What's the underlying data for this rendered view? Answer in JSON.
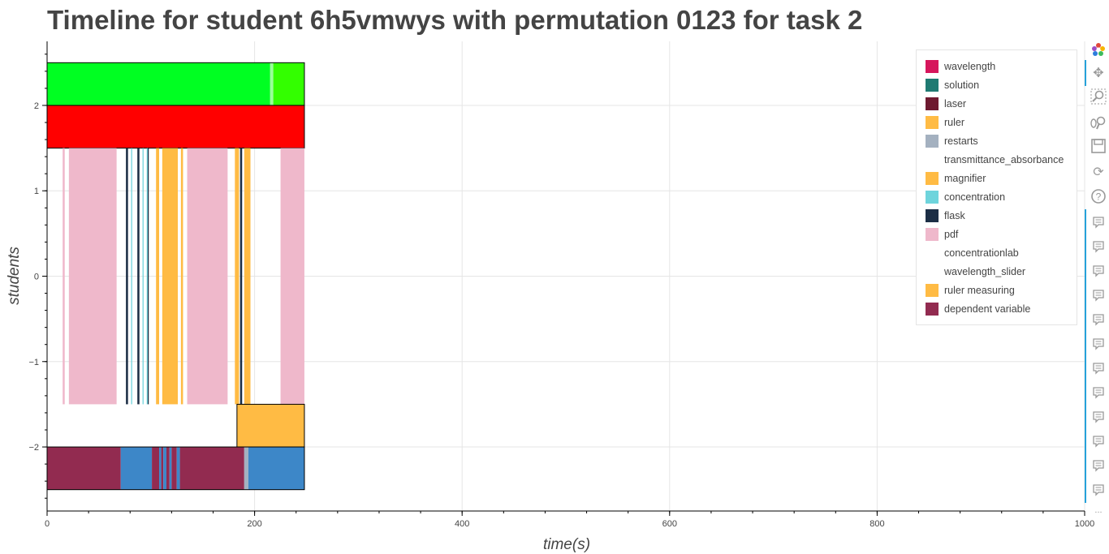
{
  "title": "Timeline for student 6h5vmwys with permutation 0123 for task 2",
  "toolbar": {
    "tools": [
      "bokeh-logo-icon",
      "pan-icon",
      "box-zoom-icon",
      "wheel-zoom-icon",
      "save-icon",
      "reset-icon",
      "help-icon"
    ],
    "hover_tool_count": 12,
    "more_label": "..."
  },
  "chart_data": {
    "type": "timeline",
    "title": "Timeline for student 6h5vmwys with permutation 0123 for task 2",
    "xlabel": "time(s)",
    "ylabel": "students",
    "xlim": [
      0,
      1000
    ],
    "ylim": [
      -2.75,
      2.75
    ],
    "xticks": [
      0,
      200,
      400,
      600,
      800,
      1000
    ],
    "yticks": [
      -2,
      -1,
      0,
      1,
      2
    ],
    "xtick_labels": [
      "0",
      "200",
      "400",
      "600",
      "800",
      "1000"
    ],
    "ytick_labels": [
      "−2",
      "−1",
      "0",
      "1",
      "2"
    ],
    "grid": true,
    "legend_position": "top-right",
    "legend": [
      {
        "label": "wavelength",
        "color": "#d6165c"
      },
      {
        "label": "solution",
        "color": "#1f7a72"
      },
      {
        "label": "laser",
        "color": "#6e1a30"
      },
      {
        "label": "ruler",
        "color": "#ffbb44"
      },
      {
        "label": "restarts",
        "color": "#a4b1c0"
      },
      {
        "label": "transmittance_absorbance",
        "color": "#ffffff"
      },
      {
        "label": "magnifier",
        "color": "#ffbb44"
      },
      {
        "label": "concentration",
        "color": "#6ed4dc"
      },
      {
        "label": "flask",
        "color": "#1c2e45"
      },
      {
        "label": "pdf",
        "color": "#efb8cb"
      },
      {
        "label": "concentrationlab",
        "color": "#ffffff"
      },
      {
        "label": "wavelength_slider",
        "color": "#ffffff"
      },
      {
        "label": "ruler measuring",
        "color": "#ffbb44"
      },
      {
        "label": "dependent variable",
        "color": "#922b50"
      }
    ],
    "rows": [
      {
        "y0": 2.0,
        "y1": 2.5,
        "outlined": true,
        "segments": [
          {
            "x0": 0,
            "x1": 215,
            "color": "#00ff22"
          },
          {
            "x0": 215,
            "x1": 218,
            "color": "#99ff99"
          },
          {
            "x0": 218,
            "x1": 248,
            "color": "#33ff00"
          }
        ]
      },
      {
        "y0": 1.5,
        "y1": 2.0,
        "outlined": true,
        "segments": [
          {
            "x0": 0,
            "x1": 248,
            "color": "#ff0000"
          }
        ]
      },
      {
        "y0": -1.5,
        "y1": 1.5,
        "outlined": false,
        "segments": [
          {
            "x0": 15,
            "x1": 17,
            "color": "#efb8cb"
          },
          {
            "x0": 21,
            "x1": 67,
            "color": "#efb8cb"
          },
          {
            "x0": 76,
            "x1": 78,
            "color": "#1c2e45"
          },
          {
            "x0": 81,
            "x1": 82,
            "color": "#6ed4dc"
          },
          {
            "x0": 87,
            "x1": 89,
            "color": "#1c2e45"
          },
          {
            "x0": 92,
            "x1": 93,
            "color": "#6ed4dc"
          },
          {
            "x0": 96,
            "x1": 97,
            "color": "#6ed4dc"
          },
          {
            "x0": 97,
            "x1": 98,
            "color": "#1c2e45"
          },
          {
            "x0": 105,
            "x1": 108,
            "color": "#ffbb44"
          },
          {
            "x0": 111,
            "x1": 126,
            "color": "#ffbb44"
          },
          {
            "x0": 129,
            "x1": 131,
            "color": "#ffbb44"
          },
          {
            "x0": 135,
            "x1": 174,
            "color": "#efb8cb"
          },
          {
            "x0": 181,
            "x1": 185,
            "color": "#ffbb44"
          },
          {
            "x0": 186,
            "x1": 188,
            "color": "#1c2e45"
          },
          {
            "x0": 190,
            "x1": 196,
            "color": "#ffbb44"
          },
          {
            "x0": 225,
            "x1": 248,
            "color": "#efb8cb"
          }
        ]
      },
      {
        "y0": -2.0,
        "y1": -1.5,
        "outlined": true,
        "segments": [
          {
            "x0": 183,
            "x1": 248,
            "color": "#ffbb44"
          }
        ]
      },
      {
        "y0": -2.5,
        "y1": -2.0,
        "outlined": true,
        "segments": [
          {
            "x0": 0,
            "x1": 71,
            "color": "#922b50"
          },
          {
            "x0": 71,
            "x1": 101,
            "color": "#3d87c8"
          },
          {
            "x0": 101,
            "x1": 108,
            "color": "#922b50"
          },
          {
            "x0": 108,
            "x1": 110,
            "color": "#3d87c8"
          },
          {
            "x0": 110,
            "x1": 112,
            "color": "#922b50"
          },
          {
            "x0": 112,
            "x1": 115,
            "color": "#3d87c8"
          },
          {
            "x0": 115,
            "x1": 118,
            "color": "#922b50"
          },
          {
            "x0": 118,
            "x1": 120,
            "color": "#3d87c8"
          },
          {
            "x0": 120,
            "x1": 125,
            "color": "#922b50"
          },
          {
            "x0": 125,
            "x1": 128,
            "color": "#3d87c8"
          },
          {
            "x0": 128,
            "x1": 190,
            "color": "#922b50"
          },
          {
            "x0": 190,
            "x1": 194,
            "color": "#a4b1c0"
          },
          {
            "x0": 194,
            "x1": 248,
            "color": "#3d87c8"
          }
        ]
      }
    ]
  }
}
